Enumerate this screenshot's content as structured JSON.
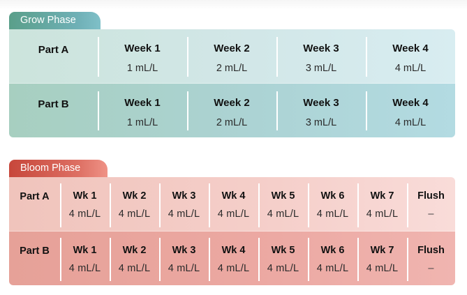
{
  "grow": {
    "title": "Grow Phase",
    "color": "#5a9f8a",
    "rows": [
      {
        "part": "Part A",
        "cells": [
          {
            "head": "Week 1",
            "value": "1 mL/L"
          },
          {
            "head": "Week 2",
            "value": "2 mL/L"
          },
          {
            "head": "Week 3",
            "value": "3 mL/L"
          },
          {
            "head": "Week 4",
            "value": "4 mL/L"
          }
        ]
      },
      {
        "part": "Part B",
        "cells": [
          {
            "head": "Week 1",
            "value": "1 mL/L"
          },
          {
            "head": "Week 2",
            "value": "2 mL/L"
          },
          {
            "head": "Week 3",
            "value": "3 mL/L"
          },
          {
            "head": "Week 4",
            "value": "4 mL/L"
          }
        ]
      }
    ]
  },
  "bloom": {
    "title": "Bloom Phase",
    "color": "#c7473b",
    "rows": [
      {
        "part": "Part A",
        "cells": [
          {
            "head": "Wk 1",
            "value": "4 mL/L"
          },
          {
            "head": "Wk 2",
            "value": "4 mL/L"
          },
          {
            "head": "Wk 3",
            "value": "4 mL/L"
          },
          {
            "head": "Wk 4",
            "value": "4 mL/L"
          },
          {
            "head": "Wk 5",
            "value": "4 mL/L"
          },
          {
            "head": "Wk 6",
            "value": "4 mL/L"
          },
          {
            "head": "Wk 7",
            "value": "4 mL/L"
          },
          {
            "head": "Flush",
            "value": "–"
          }
        ]
      },
      {
        "part": "Part B",
        "cells": [
          {
            "head": "Wk 1",
            "value": "4 mL/L"
          },
          {
            "head": "Wk 2",
            "value": "4 mL/L"
          },
          {
            "head": "Wk 3",
            "value": "4 mL/L"
          },
          {
            "head": "Wk 4",
            "value": "4 mL/L"
          },
          {
            "head": "Wk 5",
            "value": "4 mL/L"
          },
          {
            "head": "Wk 6",
            "value": "4 mL/L"
          },
          {
            "head": "Wk 7",
            "value": "4 mL/L"
          },
          {
            "head": "Flush",
            "value": "–"
          }
        ]
      }
    ]
  }
}
